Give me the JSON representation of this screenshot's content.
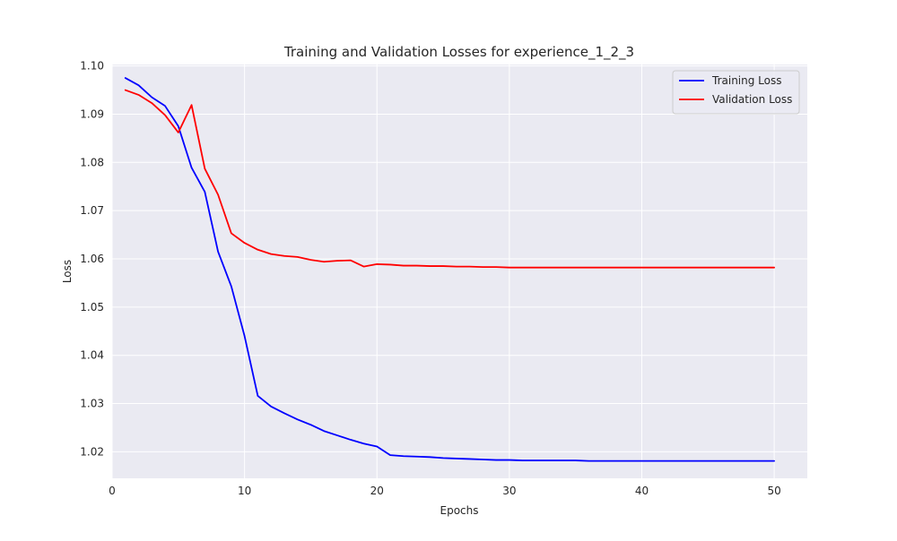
{
  "chart_data": {
    "type": "line",
    "title": "Training and Validation Losses for experience_1_2_3",
    "xlabel": "Epochs",
    "ylabel": "Loss",
    "xlim": [
      0.0,
      52.5
    ],
    "ylim": [
      1.0145,
      1.1003
    ],
    "xticks": [
      0,
      10,
      20,
      30,
      40,
      50
    ],
    "yticks": [
      1.02,
      1.03,
      1.04,
      1.05,
      1.06,
      1.07,
      1.08,
      1.09,
      1.1
    ],
    "ytick_labels": [
      "1.02",
      "1.03",
      "1.04",
      "1.05",
      "1.06",
      "1.07",
      "1.08",
      "1.09",
      "1.10"
    ],
    "grid": true,
    "legend_position": "top-right",
    "x": [
      1,
      2,
      3,
      4,
      5,
      6,
      7,
      8,
      9,
      10,
      11,
      12,
      13,
      14,
      15,
      16,
      17,
      18,
      19,
      20,
      21,
      22,
      23,
      24,
      25,
      26,
      27,
      28,
      29,
      30,
      31,
      32,
      33,
      34,
      35,
      36,
      37,
      38,
      39,
      40,
      41,
      42,
      43,
      44,
      45,
      46,
      47,
      48,
      49,
      50
    ],
    "series": [
      {
        "name": "Training Loss",
        "color": "#0000ff",
        "values": [
          1.0975,
          1.096,
          1.0935,
          1.0917,
          1.0875,
          1.0789,
          1.0739,
          1.0615,
          1.0543,
          1.044,
          1.0316,
          1.0294,
          1.028,
          1.0267,
          1.0256,
          1.0243,
          1.0234,
          1.0225,
          1.0217,
          1.0211,
          1.0193,
          1.0191,
          1.019,
          1.0189,
          1.0187,
          1.0186,
          1.0185,
          1.0184,
          1.0183,
          1.0183,
          1.0182,
          1.0182,
          1.0182,
          1.0182,
          1.0182,
          1.0181,
          1.0181,
          1.0181,
          1.0181,
          1.0181,
          1.0181,
          1.0181,
          1.0181,
          1.0181,
          1.0181,
          1.0181,
          1.0181,
          1.0181,
          1.0181,
          1.0181
        ]
      },
      {
        "name": "Validation Loss",
        "color": "#ff0000",
        "values": [
          1.095,
          1.094,
          1.0923,
          1.0898,
          1.0862,
          1.0919,
          1.0787,
          1.0733,
          1.0653,
          1.0633,
          1.0619,
          1.061,
          1.0606,
          1.0604,
          1.0598,
          1.0594,
          1.0596,
          1.0597,
          1.0584,
          1.0589,
          1.0588,
          1.0586,
          1.0586,
          1.0585,
          1.0585,
          1.0584,
          1.0584,
          1.0583,
          1.0583,
          1.0582,
          1.0582,
          1.0582,
          1.0582,
          1.0582,
          1.0582,
          1.0582,
          1.0582,
          1.0582,
          1.0582,
          1.0582,
          1.0582,
          1.0582,
          1.0582,
          1.0582,
          1.0582,
          1.0582,
          1.0582,
          1.0582,
          1.0582,
          1.0582
        ]
      }
    ]
  }
}
